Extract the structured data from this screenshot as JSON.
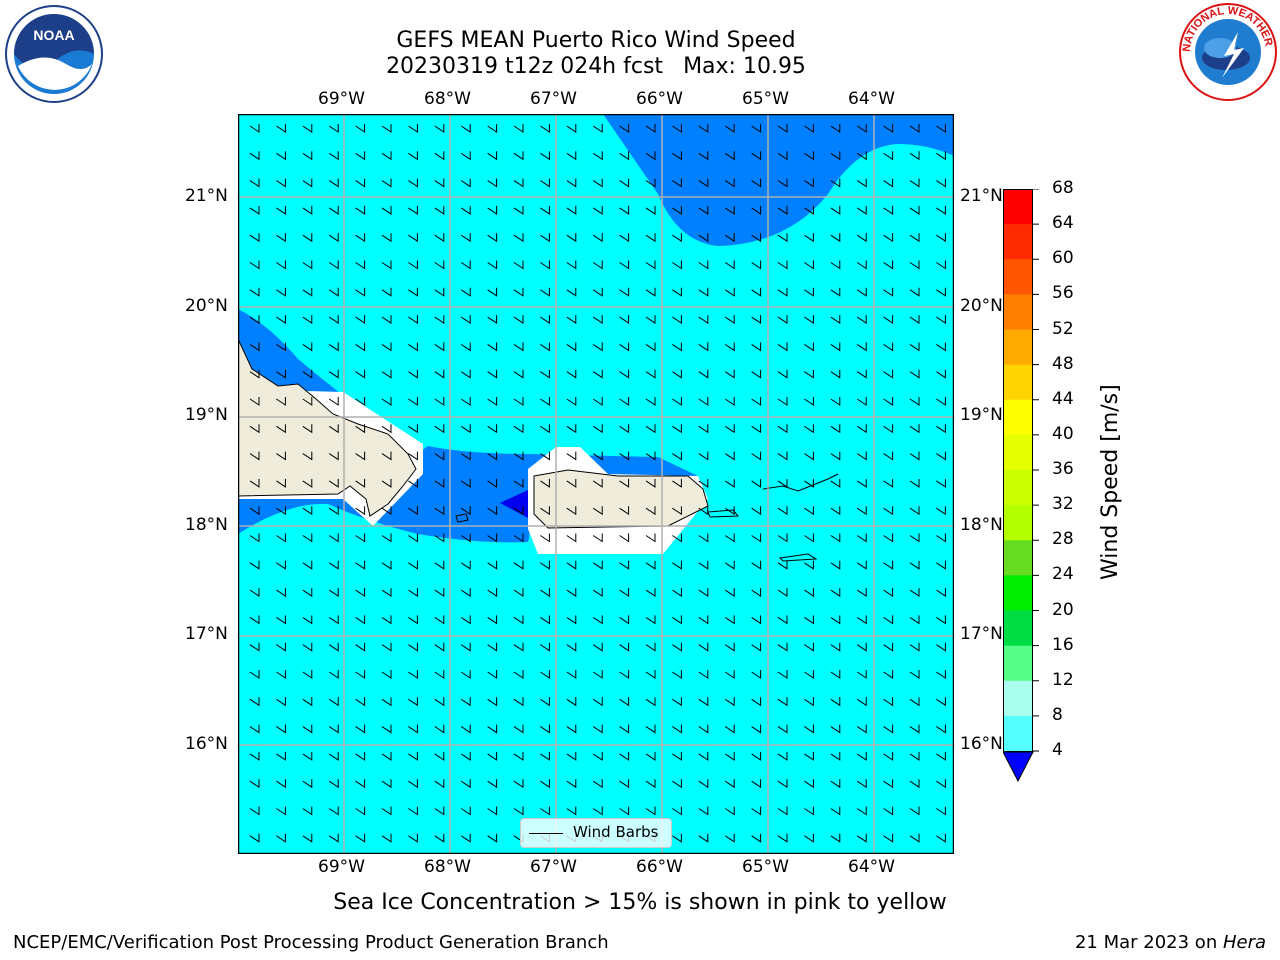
{
  "title": {
    "line1": "GEFS MEAN Puerto Rico Wind Speed",
    "line2_run": "20230319 t12z 024h fcst",
    "line2_max": "Max: 10.95"
  },
  "map": {
    "lon_labels": [
      "69°W",
      "68°W",
      "67°W",
      "66°W",
      "65°W",
      "64°W"
    ],
    "lat_labels": [
      "21°N",
      "20°N",
      "19°N",
      "18°N",
      "17°N",
      "16°N"
    ],
    "extent": {
      "lon": [
        -70.0,
        -63.25
      ],
      "lat": [
        15.1,
        21.75
      ]
    },
    "ocean_color": "#00ffff",
    "band_color": "#0080ff",
    "dark_color": "#0000ee",
    "land_color": "#efecdb",
    "grid": true
  },
  "legend": {
    "label": "Wind Barbs"
  },
  "colorbar": {
    "title": "Wind Speed [m/s]",
    "ticks": [
      "68",
      "64",
      "60",
      "56",
      "52",
      "48",
      "44",
      "40",
      "36",
      "32",
      "28",
      "24",
      "20",
      "16",
      "12",
      "8",
      "4"
    ],
    "colors": [
      "#ff0000",
      "#ff2a00",
      "#ff5400",
      "#ff8000",
      "#ffaa00",
      "#ffd400",
      "#ffff00",
      "#e6ff00",
      "#ccff00",
      "#b3ff00",
      "#66dd22",
      "#00ee00",
      "#00dd44",
      "#55ff88",
      "#aaffee",
      "#55ffff",
      "#00ffff",
      "#0080ff"
    ],
    "under_color": "#0000ff"
  },
  "note": "Sea Ice Concentration > 15% is shown in pink to yellow",
  "footer": {
    "left": "NCEP/EMC/Verification Post Processing Product Generation Branch",
    "right_date": "21 Mar 2023 on ",
    "right_machine": "Hera"
  },
  "logos": {
    "noaa": "NOAA",
    "nws": "NATIONAL WEATHER SERVICE"
  }
}
